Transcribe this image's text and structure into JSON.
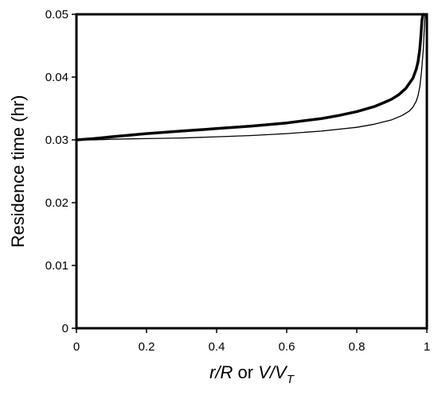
{
  "chart_data": {
    "type": "line",
    "xlabel": {
      "var_r": "r",
      "slash_R": "/R",
      "or": " or ",
      "var_V": "V",
      "slash": "/",
      "var_VT": "V",
      "subscript_T": "T"
    },
    "ylabel": "Residence time (hr)",
    "xlim": [
      0,
      1
    ],
    "ylim": [
      0,
      0.05
    ],
    "x_ticks": [
      0,
      0.2,
      0.4,
      0.6,
      0.8,
      1
    ],
    "x_tick_labels": [
      "0",
      "0.2",
      "0.4",
      "0.6",
      "0.8",
      "1"
    ],
    "y_ticks": [
      0,
      0.01,
      0.02,
      0.03,
      0.04,
      0.05
    ],
    "y_tick_labels": [
      "0",
      "0.01",
      "0.02",
      "0.03",
      "0.04",
      "0.05"
    ],
    "grid": false,
    "legend": "none",
    "series": [
      {
        "style": "thick",
        "color": "#000000",
        "x": [
          0,
          0.05,
          0.1,
          0.2,
          0.3,
          0.4,
          0.5,
          0.6,
          0.7,
          0.75,
          0.8,
          0.85,
          0.88,
          0.9,
          0.92,
          0.94,
          0.95,
          0.96,
          0.97,
          0.975,
          0.98,
          0.983,
          0.986,
          0.988,
          0.99
        ],
        "y": [
          0.03,
          0.0302,
          0.0305,
          0.031,
          0.0314,
          0.0318,
          0.0322,
          0.0327,
          0.0334,
          0.0339,
          0.0345,
          0.0353,
          0.036,
          0.0365,
          0.0372,
          0.0382,
          0.039,
          0.0398,
          0.0413,
          0.0425,
          0.0445,
          0.0465,
          0.049,
          0.0497,
          0.05
        ]
      },
      {
        "style": "thin",
        "color": "#000000",
        "x": [
          0,
          0.05,
          0.1,
          0.2,
          0.3,
          0.4,
          0.5,
          0.6,
          0.7,
          0.8,
          0.85,
          0.9,
          0.93,
          0.95,
          0.96,
          0.97,
          0.975,
          0.98,
          0.985,
          0.99,
          0.993,
          0.995
        ],
        "y": [
          0.03,
          0.03,
          0.0301,
          0.0302,
          0.0303,
          0.0305,
          0.0307,
          0.031,
          0.0314,
          0.032,
          0.0325,
          0.0332,
          0.0339,
          0.0346,
          0.0352,
          0.0362,
          0.0371,
          0.0385,
          0.041,
          0.0445,
          0.048,
          0.05
        ]
      }
    ]
  }
}
